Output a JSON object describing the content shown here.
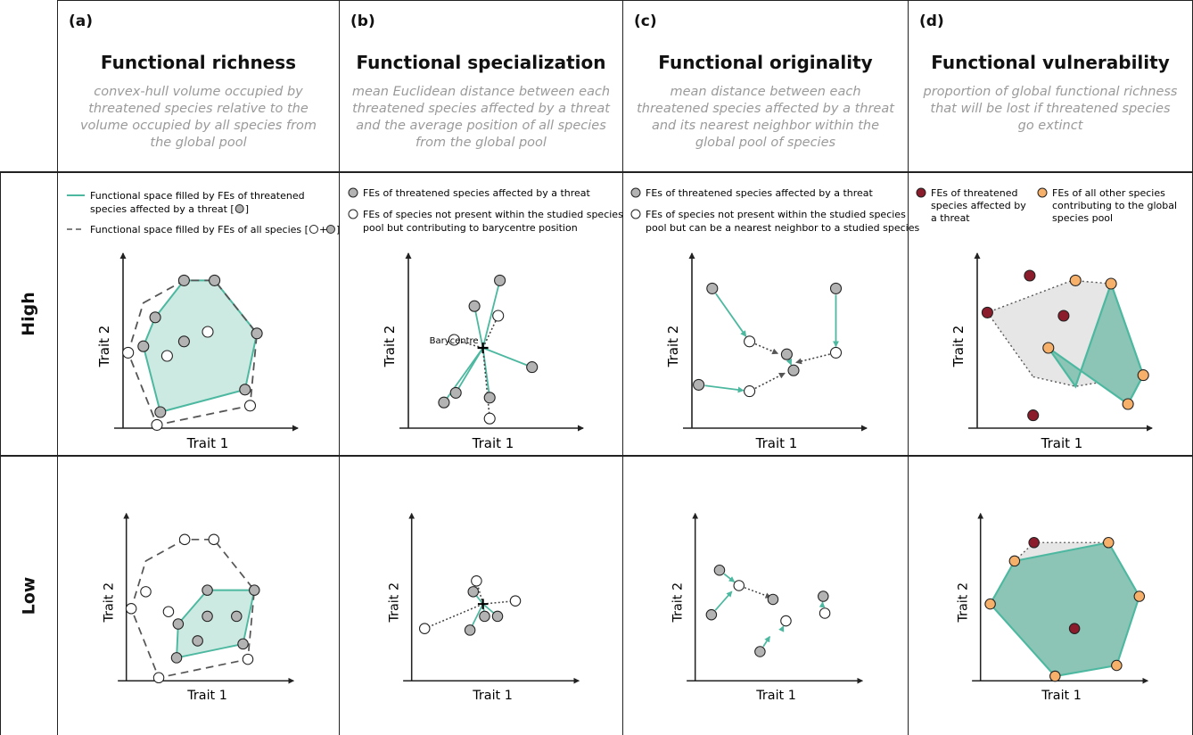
{
  "columns": [
    {
      "letter": "(a)",
      "title": "Functional richness",
      "desc": [
        "convex-hull volume occupied by",
        "threatened species relative to the",
        "volume occupied by all species from",
        "the global pool"
      ]
    },
    {
      "letter": "(b)",
      "title": "Functional specialization",
      "desc": [
        "mean Euclidean distance between each",
        "threatened species affected by a threat",
        "and the average position of all species",
        "from the global pool"
      ]
    },
    {
      "letter": "(c)",
      "title": "Functional originality",
      "desc": [
        "mean distance between each",
        "threatened species affected by a threat",
        "and its nearest neighbor within the",
        "global pool of species"
      ]
    },
    {
      "letter": "(d)",
      "title": "Functional vulnerability",
      "desc": [
        "proportion of global functional richness",
        "that will be lost if threatened species",
        "go extinct"
      ]
    }
  ],
  "rows": [
    {
      "label": "High"
    },
    {
      "label": "Low"
    }
  ],
  "axes": {
    "x_label": "Trait 1",
    "y_label": "Trait 2"
  },
  "legends": {
    "a": {
      "line1": [
        "Functional space filled by FEs of threatened",
        "species affected by  a threat ["
      ],
      "line2": "Functional space filled by FEs of all species [",
      "close": "]",
      "plus": "+"
    },
    "b": {
      "gray": [
        "FEs of threatened species affected by a threat"
      ],
      "white": [
        "FEs of species not present within the studied species",
        "pool but contributing to barycentre position"
      ]
    },
    "c": {
      "gray": [
        "FEs of threatened species affected by  a threat"
      ],
      "white": [
        "FEs of species not present within the studied species",
        "pool but can be a nearest neighbor to a studied species"
      ]
    },
    "d": {
      "red": [
        "FEs of threatened",
        "species affected by",
        "a threat"
      ],
      "orange": [
        "FEs of all other species",
        "contributing to the global",
        "species pool"
      ]
    }
  },
  "annotations": {
    "barycentre": "Barycentre"
  },
  "colors": {
    "teal": "#4db8a0",
    "teal_fill": "#cdeae2",
    "teal_fill_dark": "#8cc5b6",
    "gray_point": "#b3b3b3",
    "red_point": "#8b1c2c",
    "orange_point": "#f7b06a",
    "hull_gray": "#e6e6e6",
    "dark": "#222222",
    "desc_gray": "#9a9a9a"
  },
  "icons": [
    "arrow-up-icon",
    "arrow-right-icon",
    "barycentre-cross-icon"
  ],
  "diagrams": {
    "a_high": {
      "all_hull": [
        [
          12,
          78
        ],
        [
          36,
          92
        ],
        [
          54,
          92
        ],
        [
          79,
          59
        ],
        [
          75,
          14
        ],
        [
          20,
          2
        ],
        [
          3,
          47
        ]
      ],
      "threat_hull": [
        [
          19,
          69
        ],
        [
          36,
          92
        ],
        [
          54,
          92
        ],
        [
          79,
          59
        ],
        [
          72,
          24
        ],
        [
          22,
          10
        ],
        [
          12,
          51
        ]
      ],
      "gray": [
        [
          36,
          92
        ],
        [
          54,
          92
        ],
        [
          12,
          51
        ],
        [
          19,
          69
        ],
        [
          36,
          54
        ],
        [
          72,
          24
        ],
        [
          79,
          59
        ],
        [
          22,
          10
        ]
      ],
      "white": [
        [
          50,
          60
        ],
        [
          26,
          45
        ],
        [
          75,
          14
        ],
        [
          20,
          2
        ],
        [
          3,
          47
        ]
      ]
    },
    "a_low": {
      "all_hull": [
        [
          12,
          78
        ],
        [
          36,
          92
        ],
        [
          54,
          92
        ],
        [
          79,
          59
        ],
        [
          75,
          14
        ],
        [
          20,
          2
        ],
        [
          3,
          47
        ]
      ],
      "threat_hull": [
        [
          50,
          59
        ],
        [
          79,
          59
        ],
        [
          72,
          24
        ],
        [
          31,
          15
        ],
        [
          32,
          37
        ]
      ],
      "gray": [
        [
          50,
          59
        ],
        [
          79,
          59
        ],
        [
          32,
          37
        ],
        [
          31,
          15
        ],
        [
          50,
          42
        ],
        [
          68,
          42
        ],
        [
          44,
          26
        ],
        [
          72,
          24
        ]
      ],
      "white": [
        [
          26,
          45
        ],
        [
          12,
          58
        ],
        [
          3,
          47
        ],
        [
          36,
          92
        ],
        [
          54,
          92
        ],
        [
          75,
          14
        ],
        [
          20,
          2
        ]
      ]
    },
    "b_high": {
      "center": [
        44,
        50
      ],
      "gray_lines": [
        [
          54,
          92
        ],
        [
          39,
          76
        ],
        [
          73,
          38
        ],
        [
          28,
          22
        ],
        [
          21,
          16
        ],
        [
          48,
          19
        ]
      ],
      "white_dotted": [
        [
          53,
          70
        ],
        [
          27,
          55
        ],
        [
          48,
          6
        ]
      ],
      "gray": [
        [
          54,
          92
        ],
        [
          39,
          76
        ],
        [
          73,
          38
        ],
        [
          28,
          22
        ],
        [
          21,
          16
        ],
        [
          48,
          19
        ]
      ],
      "white": [
        [
          53,
          70
        ],
        [
          27,
          55
        ],
        [
          48,
          6
        ]
      ]
    },
    "b_low": {
      "center": [
        44,
        50
      ],
      "gray_lines": [
        [
          38,
          58
        ],
        [
          45,
          42
        ],
        [
          36,
          33
        ],
        [
          53,
          42
        ]
      ],
      "white_dotted": [
        [
          40,
          65
        ],
        [
          64,
          52
        ],
        [
          8,
          34
        ]
      ],
      "gray": [
        [
          38,
          58
        ],
        [
          45,
          42
        ],
        [
          36,
          33
        ],
        [
          53,
          42
        ]
      ],
      "white": [
        [
          40,
          65
        ],
        [
          64,
          52
        ],
        [
          8,
          34
        ]
      ]
    },
    "c_high": {
      "teal_arrows": [
        [
          [
            12,
            87
          ],
          [
            34,
            54
          ]
        ],
        [
          [
            4,
            27
          ],
          [
            34,
            23
          ]
        ],
        [
          [
            85,
            87
          ],
          [
            85,
            47
          ]
        ],
        [
          [
            56,
            46
          ],
          [
            60,
            36
          ]
        ]
      ],
      "dotted_arrows": [
        [
          [
            34,
            54
          ],
          [
            54,
            45
          ]
        ],
        [
          [
            85,
            47
          ],
          [
            58,
            40
          ]
        ],
        [
          [
            34,
            23
          ],
          [
            58,
            36
          ]
        ]
      ],
      "gray": [
        [
          12,
          87
        ],
        [
          4,
          27
        ],
        [
          85,
          87
        ],
        [
          56,
          46
        ],
        [
          60,
          36
        ]
      ],
      "white": [
        [
          34,
          54
        ],
        [
          34,
          23
        ],
        [
          85,
          47
        ]
      ]
    },
    "c_low": {
      "teal_arrows": [
        [
          [
            15,
            72
          ],
          [
            27,
            62
          ]
        ],
        [
          [
            10,
            43
          ],
          [
            25,
            61
          ]
        ],
        [
          [
            52,
            30
          ],
          [
            56,
            39
          ]
        ],
        [
          [
            40,
            19
          ],
          [
            48,
            32
          ]
        ],
        [
          [
            78,
            44
          ],
          [
            79,
            55
          ]
        ]
      ],
      "dotted_arrows": [
        [
          [
            27,
            62
          ],
          [
            50,
            53
          ]
        ]
      ],
      "gray": [
        [
          15,
          72
        ],
        [
          10,
          43
        ],
        [
          48,
          53
        ],
        [
          40,
          19
        ],
        [
          79,
          55
        ]
      ],
      "white": [
        [
          27,
          62
        ],
        [
          56,
          39
        ],
        [
          80,
          44
        ]
      ]
    },
    "d_high": {
      "global_hull": [
        [
          33,
          32
        ],
        [
          58,
          26
        ],
        [
          98,
          33
        ],
        [
          79,
          90
        ],
        [
          56,
          92
        ],
        [
          6,
          72
        ]
      ],
      "threat_area": [
        [
          58,
          26
        ],
        [
          79,
          90
        ],
        [
          98,
          33
        ],
        [
          56,
          92
        ]
      ],
      "teal_hull": [
        [
          58,
          26
        ],
        [
          79,
          90
        ],
        [
          98,
          33
        ],
        [
          89,
          15
        ],
        [
          42,
          50
        ]
      ],
      "red": [
        [
          6,
          72
        ],
        [
          31,
          95
        ],
        [
          51,
          70
        ],
        [
          33,
          8
        ]
      ],
      "orange": [
        [
          42,
          50
        ],
        [
          58,
          92
        ],
        [
          89,
          15
        ],
        [
          98,
          33
        ],
        [
          79,
          90
        ]
      ]
    },
    "d_low": {
      "global_hull": [
        [
          33,
          90
        ],
        [
          79,
          90
        ],
        [
          98,
          55
        ],
        [
          84,
          10
        ],
        [
          46,
          3
        ],
        [
          6,
          50
        ],
        [
          21,
          78
        ]
      ],
      "teal_hull": [
        [
          84,
          10
        ],
        [
          98,
          55
        ],
        [
          79,
          90
        ],
        [
          21,
          78
        ],
        [
          6,
          50
        ],
        [
          46,
          3
        ]
      ],
      "red": [
        [
          33,
          90
        ],
        [
          58,
          34
        ]
      ],
      "orange": [
        [
          79,
          90
        ],
        [
          98,
          55
        ],
        [
          84,
          10
        ],
        [
          46,
          3
        ],
        [
          6,
          50
        ],
        [
          21,
          78
        ]
      ]
    }
  }
}
